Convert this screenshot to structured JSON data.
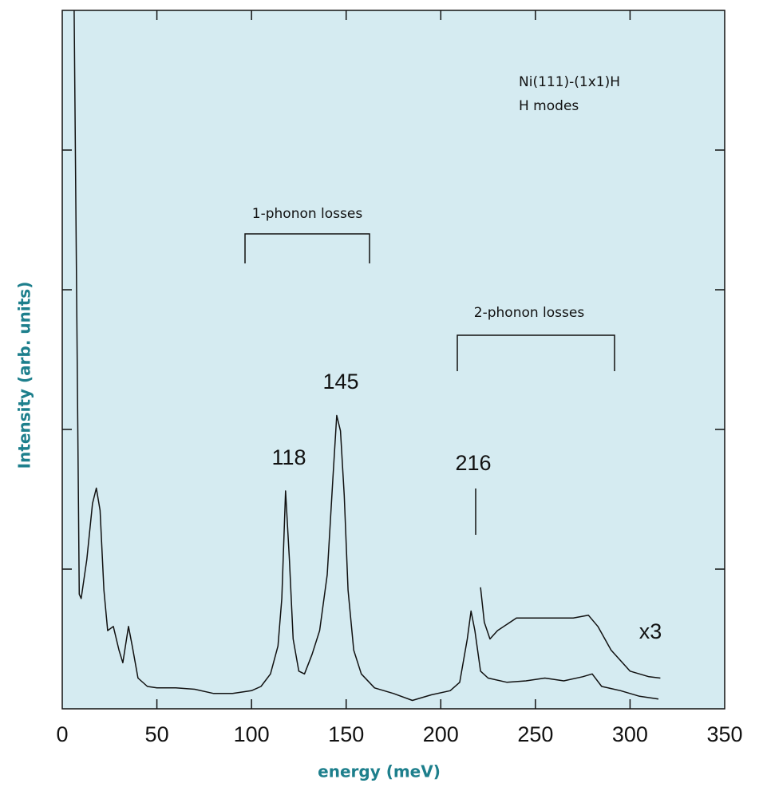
{
  "chart_data": {
    "type": "line",
    "xlabel": "energy (meV)",
    "ylabel": "Intensity (arb. units)",
    "xlim": [
      0,
      350
    ],
    "xticks": [
      0,
      50,
      100,
      150,
      200,
      250,
      300,
      350
    ],
    "ylim": [
      0,
      5
    ],
    "yticks": [
      1,
      2,
      3,
      4
    ],
    "annotations": [
      "Ni(111)-(1x1)H",
      "H modes",
      "1-phonon losses",
      "2-phonon losses",
      "118",
      "145",
      "216",
      "x3"
    ],
    "series": [
      {
        "color": "#111111",
        "x": [
          6.3,
          9,
          10,
          13,
          16,
          18,
          20,
          22,
          24,
          27,
          30,
          32,
          35,
          37,
          40,
          45,
          50,
          60,
          70,
          80,
          90,
          100,
          105,
          110,
          114,
          116,
          118,
          120,
          122,
          125,
          128,
          132,
          136,
          140,
          143,
          145,
          147,
          149,
          151,
          154,
          158,
          165,
          175,
          185,
          195,
          205,
          210,
          214,
          216,
          218,
          221,
          225,
          235,
          245,
          255,
          265,
          275,
          280,
          285,
          295,
          305,
          315
        ],
        "values": [
          5,
          0.82,
          0.79,
          1.07,
          1.47,
          1.58,
          1.42,
          0.85,
          0.56,
          0.59,
          0.42,
          0.33,
          0.59,
          0.45,
          0.22,
          0.16,
          0.15,
          0.15,
          0.14,
          0.11,
          0.11,
          0.13,
          0.16,
          0.25,
          0.45,
          0.79,
          1.56,
          1.07,
          0.5,
          0.27,
          0.25,
          0.39,
          0.56,
          0.96,
          1.65,
          2.1,
          1.99,
          1.53,
          0.85,
          0.42,
          0.25,
          0.15,
          0.11,
          0.06,
          0.1,
          0.13,
          0.19,
          0.5,
          0.7,
          0.56,
          0.27,
          0.22,
          0.19,
          0.2,
          0.22,
          0.2,
          0.23,
          0.25,
          0.16,
          0.13,
          0.09,
          0.07
        ]
      },
      {
        "color": "#111111",
        "x": [
          221,
          223,
          226,
          230,
          240,
          250,
          260,
          270,
          278,
          283,
          290,
          300,
          310,
          316
        ],
        "values": [
          0.87,
          0.62,
          0.5,
          0.56,
          0.65,
          0.65,
          0.65,
          0.65,
          0.67,
          0.59,
          0.42,
          0.27,
          0.23,
          0.22
        ]
      }
    ]
  }
}
